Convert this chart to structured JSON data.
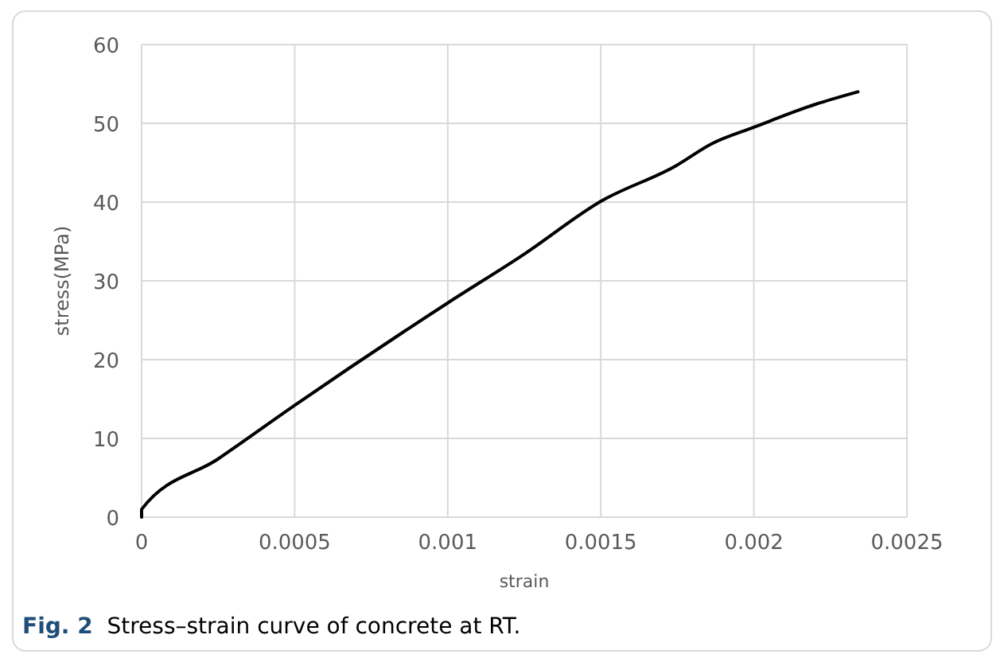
{
  "chart_data": {
    "type": "line",
    "title": "Fig. 2  Stress–strain curve of concrete at RT.",
    "xlabel": "strain",
    "ylabel": "stress(MPa)",
    "x": [
      0,
      0,
      0.00025,
      0.0005,
      0.001,
      0.00125,
      0.0015,
      0.001745,
      0.001862,
      0.002,
      0.0022,
      0.00234
    ],
    "series": [
      {
        "color": "#000000",
        "values": [
          0,
          1.0,
          7.4,
          14.2,
          27.2,
          33.4,
          40.1,
          44.6,
          47.4,
          49.5,
          52.4,
          54.0
        ]
      }
    ],
    "xlim": [
      0,
      0.0025
    ],
    "xticks": [
      0,
      0.0005,
      0.001,
      0.0015,
      0.002,
      0.0025
    ],
    "ylim": [
      0,
      60
    ],
    "yticks": [
      0,
      10,
      20,
      30,
      40,
      50,
      60
    ],
    "grid": true,
    "marker": "none",
    "line_style": "solid"
  }
}
